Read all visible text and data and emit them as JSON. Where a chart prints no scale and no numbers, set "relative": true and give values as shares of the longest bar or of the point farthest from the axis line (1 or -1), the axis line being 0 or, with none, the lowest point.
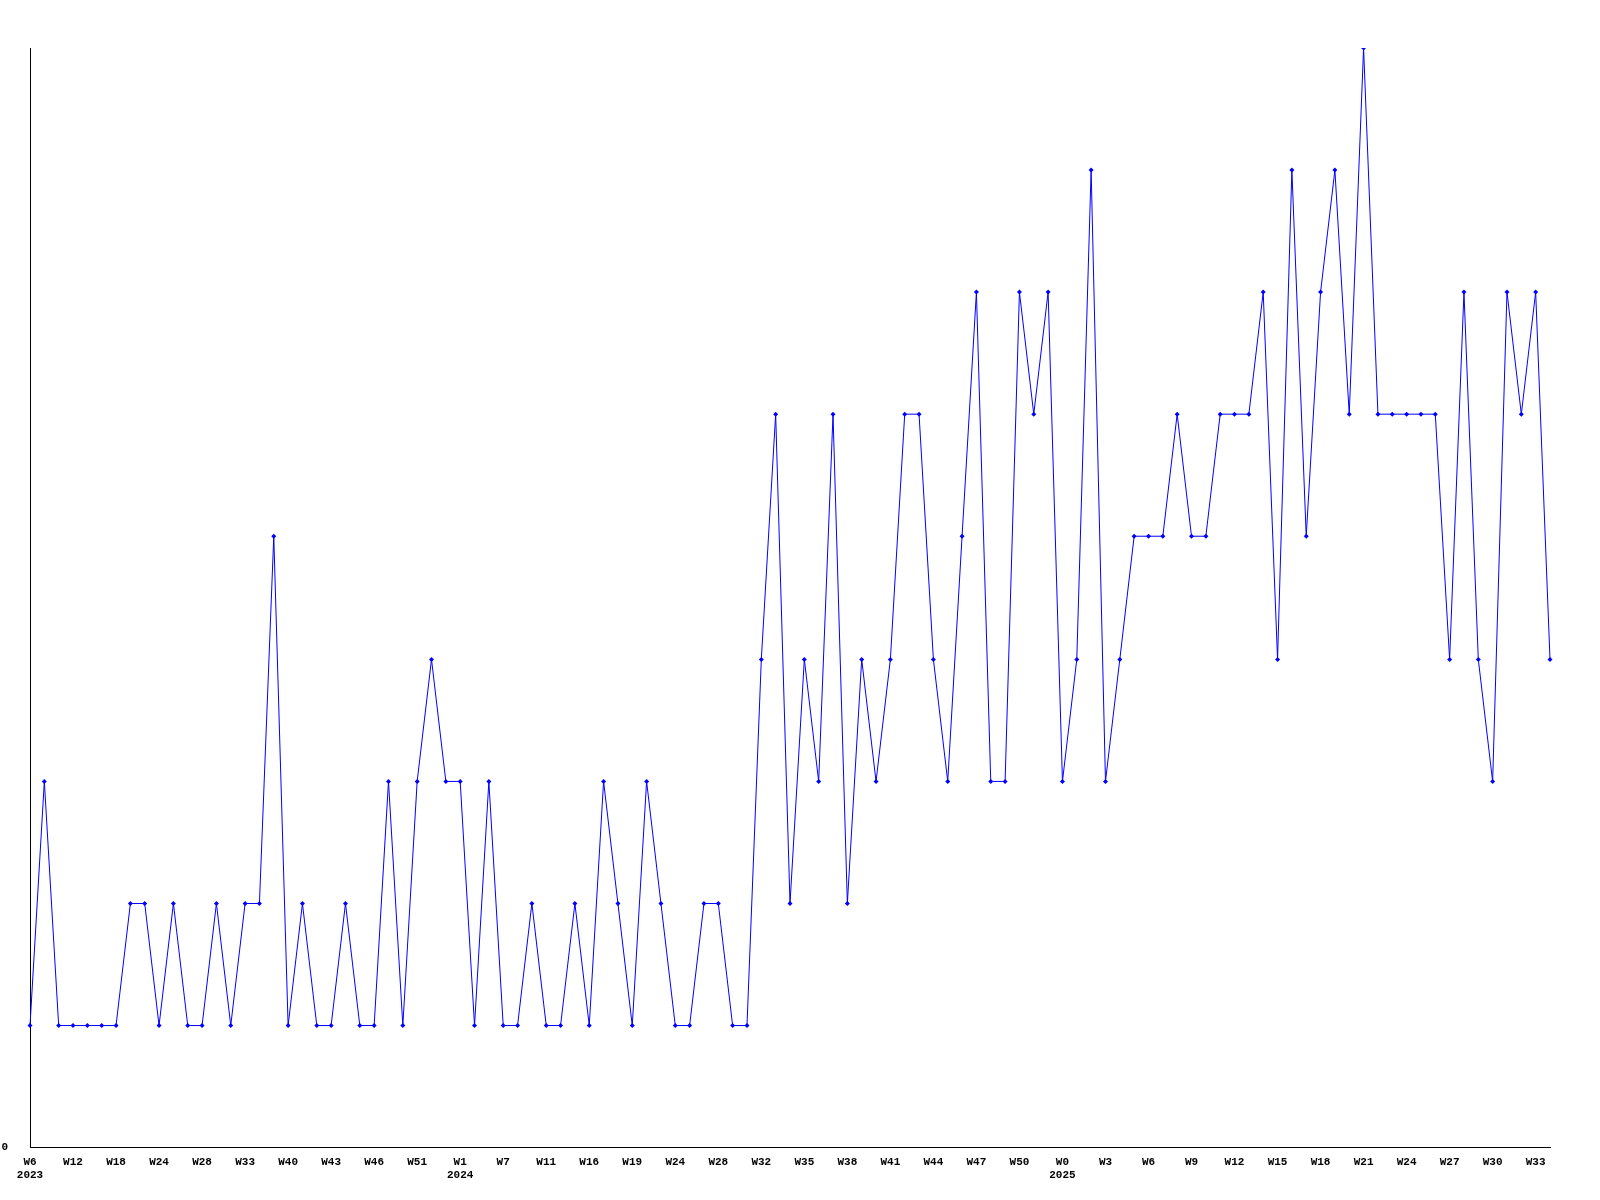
{
  "chart_data": {
    "type": "line",
    "relative": true,
    "color": "#0000ff",
    "marker": "diamond",
    "grid": false,
    "legend": false,
    "annotations": [
      "0"
    ],
    "categories": [
      "W6\n2023",
      null,
      null,
      "W12",
      null,
      null,
      "W18",
      null,
      null,
      "W24",
      null,
      null,
      "W28",
      null,
      null,
      "W33",
      null,
      null,
      "W40",
      null,
      null,
      "W43",
      null,
      null,
      "W46",
      null,
      null,
      "W51",
      null,
      null,
      "W1\n2024",
      null,
      null,
      "W7",
      null,
      null,
      "W11",
      null,
      null,
      "W16",
      null,
      null,
      "W19",
      null,
      null,
      "W24",
      null,
      null,
      "W28",
      null,
      null,
      "W32",
      null,
      null,
      "W35",
      null,
      null,
      "W38",
      null,
      null,
      "W41",
      null,
      null,
      "W44",
      null,
      null,
      "W47",
      null,
      null,
      "W50",
      null,
      null,
      "W0\n2025",
      null,
      null,
      "W3",
      null,
      null,
      "W6",
      null,
      null,
      "W9",
      null,
      null,
      "W12",
      null,
      null,
      "W15",
      null,
      null,
      "W18",
      null,
      null,
      "W21",
      null,
      null,
      "W24",
      null,
      null,
      "W27",
      null,
      null,
      "W30",
      null,
      null,
      "W33",
      null
    ],
    "values": [
      0.111,
      0.333,
      0.111,
      0.111,
      0.111,
      0.111,
      0.111,
      0.222,
      0.222,
      0.111,
      0.222,
      0.111,
      0.111,
      0.222,
      0.111,
      0.222,
      0.222,
      0.556,
      0.111,
      0.222,
      0.111,
      0.111,
      0.222,
      0.111,
      0.111,
      0.333,
      0.111,
      0.333,
      0.444,
      0.333,
      0.333,
      0.111,
      0.333,
      0.111,
      0.111,
      0.222,
      0.111,
      0.111,
      0.222,
      0.111,
      0.333,
      0.222,
      0.111,
      0.333,
      0.222,
      0.111,
      0.111,
      0.222,
      0.222,
      0.111,
      0.111,
      0.444,
      0.667,
      0.222,
      0.444,
      0.333,
      0.667,
      0.222,
      0.444,
      0.333,
      0.444,
      0.667,
      0.667,
      0.444,
      0.333,
      0.556,
      0.778,
      0.333,
      0.333,
      0.778,
      0.667,
      0.778,
      0.333,
      0.444,
      0.889,
      0.333,
      0.444,
      0.556,
      0.556,
      0.556,
      0.667,
      0.556,
      0.556,
      0.667,
      0.667,
      0.667,
      0.778,
      0.444,
      0.889,
      0.556,
      0.778,
      0.889,
      0.667,
      1,
      0.667,
      0.667,
      0.667,
      0.667,
      0.667,
      0.444,
      0.778,
      0.444,
      0.333,
      0.778,
      0.667,
      0.778,
      0.444
    ]
  }
}
